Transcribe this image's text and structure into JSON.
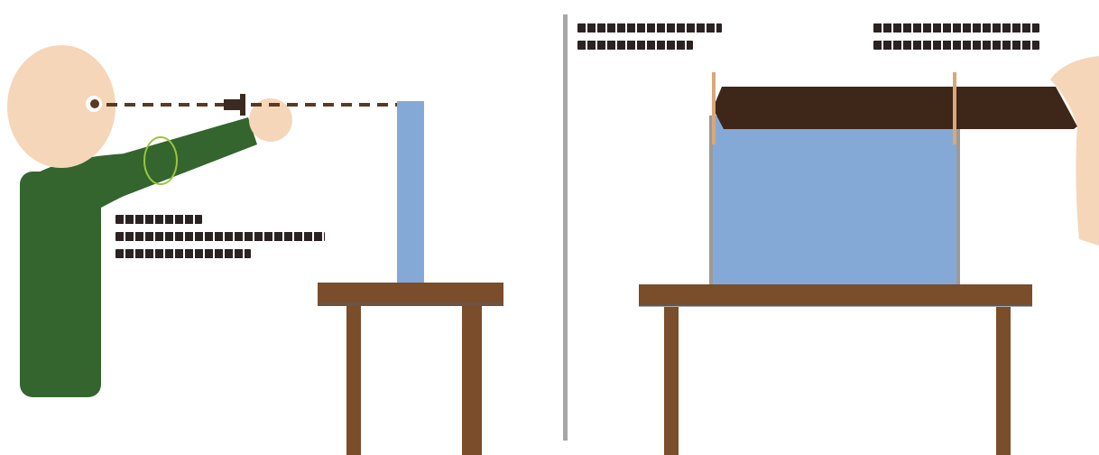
{
  "diagram": {
    "left_panel": {
      "person": {
        "figure": "person-pointing",
        "shirt_color": "#34652f",
        "skin_color": "#f5d6b8"
      },
      "sight_line": {
        "style": "dashed",
        "color": "#5a3a22"
      },
      "elbow_marker": {
        "style": "ellipse",
        "color": "#9bc53d"
      },
      "object": {
        "shape": "tall-rectangle",
        "color": "#85a9d6"
      },
      "table": {
        "color": "#7a4d2b"
      },
      "label": {
        "line_count": 3
      }
    },
    "divider": {
      "color": "#a6a6a6"
    },
    "right_panel": {
      "water_tank": {
        "color": "#85a9d6"
      },
      "lid": {
        "color": "#3e2618"
      },
      "poles": {
        "color": "#d9a87a"
      },
      "table": {
        "color": "#7a4d2b"
      },
      "partial_figure": {
        "skin_color": "#f5d6b8"
      },
      "label_left": {
        "line_count": 2
      },
      "label_right": {
        "line_count": 2
      }
    }
  }
}
